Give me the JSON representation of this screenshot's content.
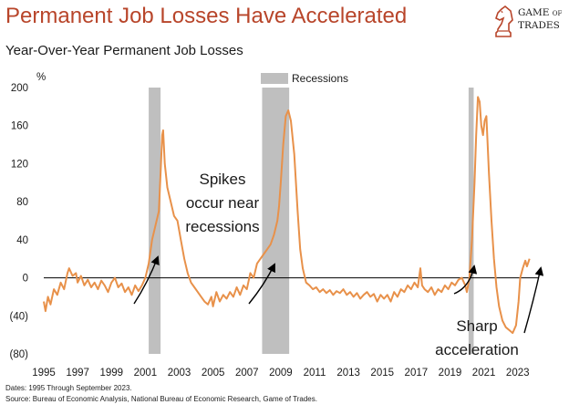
{
  "header": {
    "title": "Permanent Job Losses Have Accelerated",
    "subtitle": "Year-Over-Year Permanent Job Losses"
  },
  "logo": {
    "name": "Game of Trades",
    "line1": "GAME",
    "line2": "OF",
    "line3": "TRADES"
  },
  "footer": {
    "dates": "Dates: 1995 Through September 2023.",
    "source": "Source: Bureau of Economic Analysis, National Bureau of Economic Research, Game of Trades."
  },
  "colors": {
    "title": "#b8452a",
    "line": "#e8914a",
    "recession": "#bfbfbf"
  },
  "chart_data": {
    "type": "line",
    "title": "Year-Over-Year Permanent Job Losses",
    "ylabel": "%",
    "ylim": [
      -80,
      200
    ],
    "xlim": [
      1995.0,
      2024.2
    ],
    "yticks": [
      200,
      160,
      120,
      80,
      40,
      0,
      -40,
      -80
    ],
    "ytick_labels": [
      "200",
      "160",
      "120",
      "80",
      "40",
      "0",
      "(40)",
      "(80)"
    ],
    "xticks": [
      1995,
      1997,
      1999,
      2001,
      2003,
      2005,
      2007,
      2009,
      2011,
      2013,
      2015,
      2017,
      2019,
      2021,
      2023
    ],
    "xtick_labels": [
      "1995",
      "1997",
      "1999",
      "2001",
      "2003",
      "2005",
      "2007",
      "2009",
      "2011",
      "2013",
      "2015",
      "2017",
      "2019",
      "2021",
      "2023"
    ],
    "legend": "Recessions",
    "recessions": [
      [
        2001.2,
        2001.9
      ],
      [
        2007.9,
        2009.5
      ],
      [
        2020.1,
        2020.4
      ]
    ],
    "annotations": [
      {
        "lines": [
          "Spikes",
          "occur near",
          "recessions"
        ]
      },
      {
        "lines": [
          "Sharp",
          "acceleration"
        ]
      }
    ],
    "series": [
      {
        "name": "Year-Over-Year Permanent Job Losses",
        "points": [
          [
            1995.0,
            -25
          ],
          [
            1995.1,
            -35
          ],
          [
            1995.25,
            -20
          ],
          [
            1995.4,
            -28
          ],
          [
            1995.6,
            -12
          ],
          [
            1995.8,
            -18
          ],
          [
            1996.0,
            -5
          ],
          [
            1996.2,
            -12
          ],
          [
            1996.4,
            5
          ],
          [
            1996.5,
            10
          ],
          [
            1996.7,
            2
          ],
          [
            1996.9,
            5
          ],
          [
            1997.0,
            -5
          ],
          [
            1997.2,
            2
          ],
          [
            1997.4,
            -8
          ],
          [
            1997.6,
            -2
          ],
          [
            1997.8,
            -10
          ],
          [
            1998.0,
            -5
          ],
          [
            1998.2,
            -12
          ],
          [
            1998.4,
            -3
          ],
          [
            1998.6,
            -8
          ],
          [
            1998.8,
            -15
          ],
          [
            1999.0,
            -5
          ],
          [
            1999.2,
            0
          ],
          [
            1999.4,
            -10
          ],
          [
            1999.6,
            -6
          ],
          [
            1999.8,
            -15
          ],
          [
            2000.0,
            -10
          ],
          [
            2000.2,
            -18
          ],
          [
            2000.4,
            -8
          ],
          [
            2000.6,
            -14
          ],
          [
            2000.8,
            -8
          ],
          [
            2001.0,
            0
          ],
          [
            2001.2,
            15
          ],
          [
            2001.4,
            40
          ],
          [
            2001.6,
            55
          ],
          [
            2001.8,
            70
          ],
          [
            2001.9,
            110
          ],
          [
            2002.0,
            150
          ],
          [
            2002.05,
            155
          ],
          [
            2002.15,
            120
          ],
          [
            2002.3,
            95
          ],
          [
            2002.5,
            80
          ],
          [
            2002.7,
            65
          ],
          [
            2002.9,
            60
          ],
          [
            2003.1,
            40
          ],
          [
            2003.3,
            20
          ],
          [
            2003.5,
            5
          ],
          [
            2003.7,
            -5
          ],
          [
            2003.9,
            -10
          ],
          [
            2004.1,
            -15
          ],
          [
            2004.3,
            -20
          ],
          [
            2004.5,
            -25
          ],
          [
            2004.7,
            -28
          ],
          [
            2004.9,
            -20
          ],
          [
            2005.0,
            -30
          ],
          [
            2005.2,
            -15
          ],
          [
            2005.4,
            -25
          ],
          [
            2005.6,
            -18
          ],
          [
            2005.8,
            -22
          ],
          [
            2006.0,
            -15
          ],
          [
            2006.2,
            -20
          ],
          [
            2006.4,
            -10
          ],
          [
            2006.6,
            -18
          ],
          [
            2006.8,
            -8
          ],
          [
            2007.0,
            -12
          ],
          [
            2007.2,
            5
          ],
          [
            2007.4,
            0
          ],
          [
            2007.6,
            15
          ],
          [
            2007.8,
            20
          ],
          [
            2008.0,
            25
          ],
          [
            2008.2,
            30
          ],
          [
            2008.4,
            35
          ],
          [
            2008.6,
            45
          ],
          [
            2008.8,
            60
          ],
          [
            2008.9,
            75
          ],
          [
            2009.0,
            100
          ],
          [
            2009.15,
            140
          ],
          [
            2009.3,
            170
          ],
          [
            2009.45,
            176
          ],
          [
            2009.6,
            165
          ],
          [
            2009.8,
            130
          ],
          [
            2010.0,
            70
          ],
          [
            2010.15,
            30
          ],
          [
            2010.3,
            10
          ],
          [
            2010.5,
            -5
          ],
          [
            2010.7,
            -8
          ],
          [
            2010.9,
            -12
          ],
          [
            2011.1,
            -10
          ],
          [
            2011.3,
            -15
          ],
          [
            2011.5,
            -12
          ],
          [
            2011.7,
            -16
          ],
          [
            2011.9,
            -13
          ],
          [
            2012.1,
            -18
          ],
          [
            2012.3,
            -14
          ],
          [
            2012.5,
            -16
          ],
          [
            2012.7,
            -12
          ],
          [
            2012.9,
            -18
          ],
          [
            2013.1,
            -15
          ],
          [
            2013.3,
            -20
          ],
          [
            2013.5,
            -16
          ],
          [
            2013.7,
            -22
          ],
          [
            2013.9,
            -18
          ],
          [
            2014.1,
            -15
          ],
          [
            2014.3,
            -20
          ],
          [
            2014.5,
            -17
          ],
          [
            2014.7,
            -25
          ],
          [
            2014.9,
            -18
          ],
          [
            2015.1,
            -22
          ],
          [
            2015.3,
            -18
          ],
          [
            2015.5,
            -25
          ],
          [
            2015.7,
            -15
          ],
          [
            2015.9,
            -20
          ],
          [
            2016.1,
            -12
          ],
          [
            2016.3,
            -15
          ],
          [
            2016.5,
            -8
          ],
          [
            2016.7,
            -12
          ],
          [
            2016.9,
            -5
          ],
          [
            2017.1,
            -10
          ],
          [
            2017.25,
            10
          ],
          [
            2017.35,
            -8
          ],
          [
            2017.5,
            -12
          ],
          [
            2017.7,
            -15
          ],
          [
            2017.9,
            -10
          ],
          [
            2018.1,
            -18
          ],
          [
            2018.3,
            -12
          ],
          [
            2018.5,
            -15
          ],
          [
            2018.7,
            -8
          ],
          [
            2018.9,
            -12
          ],
          [
            2019.1,
            -5
          ],
          [
            2019.3,
            -8
          ],
          [
            2019.5,
            -2
          ],
          [
            2019.7,
            0
          ],
          [
            2019.9,
            -8
          ],
          [
            2020.0,
            -15
          ],
          [
            2020.15,
            0
          ],
          [
            2020.3,
            40
          ],
          [
            2020.45,
            100
          ],
          [
            2020.55,
            150
          ],
          [
            2020.65,
            190
          ],
          [
            2020.75,
            185
          ],
          [
            2020.85,
            160
          ],
          [
            2020.95,
            150
          ],
          [
            2021.05,
            165
          ],
          [
            2021.15,
            170
          ],
          [
            2021.3,
            110
          ],
          [
            2021.45,
            60
          ],
          [
            2021.6,
            20
          ],
          [
            2021.75,
            -10
          ],
          [
            2021.9,
            -30
          ],
          [
            2022.1,
            -45
          ],
          [
            2022.3,
            -52
          ],
          [
            2022.5,
            -55
          ],
          [
            2022.7,
            -58
          ],
          [
            2022.9,
            -50
          ],
          [
            2023.05,
            -25
          ],
          [
            2023.15,
            0
          ],
          [
            2023.3,
            10
          ],
          [
            2023.45,
            18
          ],
          [
            2023.55,
            12
          ],
          [
            2023.7,
            20
          ]
        ]
      }
    ]
  }
}
